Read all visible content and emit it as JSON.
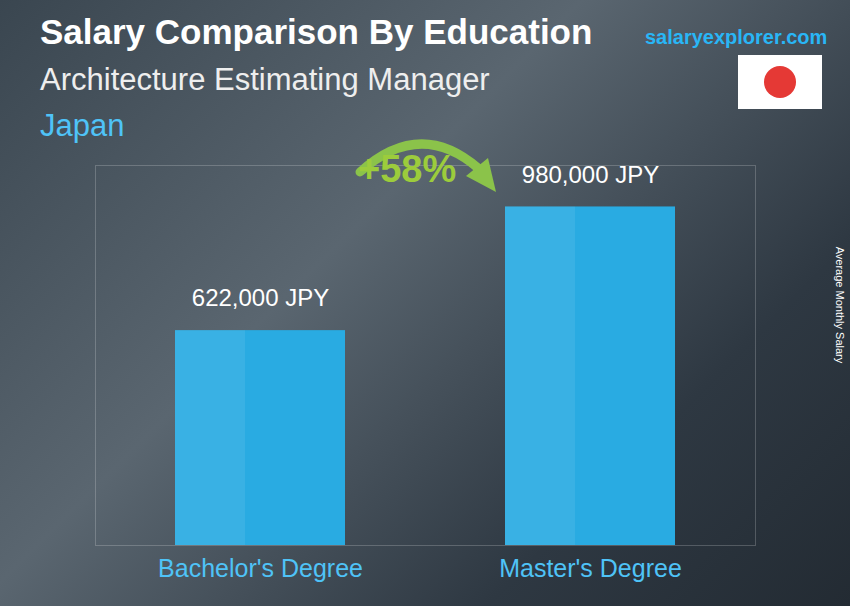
{
  "chart_data": {
    "type": "bar",
    "title": "Salary Comparison By Education",
    "subtitle": "Architecture Estimating Manager",
    "country": "Japan",
    "source": "salaryexplorer.com",
    "y_label": "Average Monthly Salary",
    "annotation": "+58%",
    "categories": [
      "Bachelor's Degree",
      "Master's Degree"
    ],
    "values": [
      622000,
      980000
    ],
    "value_labels": [
      "622,000 JPY",
      "980,000 JPY"
    ],
    "color": "#29abe2",
    "ylim": [
      0,
      1100000
    ],
    "yticks": [],
    "grid": false,
    "data_labels": true,
    "tick_labels": "x"
  }
}
